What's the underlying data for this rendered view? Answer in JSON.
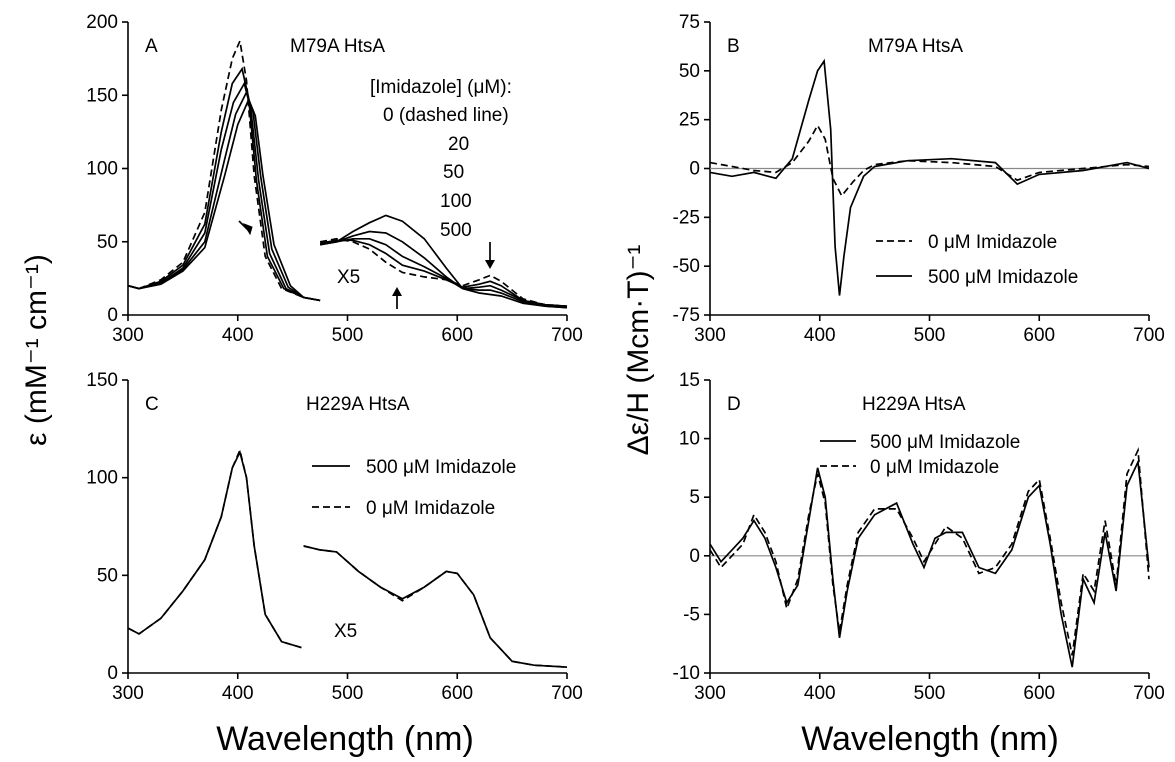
{
  "y_label_left": "ε  (mM⁻¹ cm⁻¹)",
  "y_label_right": "Δε/H (Mcm·T)⁻¹",
  "x_label_left": "Wavelength  (nm)",
  "x_label_right": "Wavelength  (nm)",
  "chart_data": [
    {
      "panel": "A",
      "type": "line",
      "title": "M79A HtsA",
      "xlim": [
        300,
        700
      ],
      "ylim": [
        0,
        200
      ],
      "xticks": [
        300,
        400,
        500,
        600,
        700
      ],
      "yticks": [
        0,
        50,
        100,
        150,
        200
      ],
      "legend_title": "[Imidazole] (μM):",
      "legend_items": [
        "0  (dashed line)",
        "20",
        "50",
        "100",
        "500"
      ],
      "annotations": [
        "X5"
      ],
      "series": [
        {
          "name": "0",
          "style": "dashed",
          "x": [
            300,
            310,
            330,
            350,
            370,
            385,
            395,
            402,
            408,
            415,
            425,
            440,
            460,
            475
          ],
          "y": [
            20,
            18,
            24,
            36,
            70,
            140,
            175,
            187,
            160,
            95,
            40,
            18,
            12,
            10
          ]
        },
        {
          "name": "20",
          "style": "solid",
          "x": [
            300,
            310,
            330,
            350,
            370,
            385,
            395,
            404,
            410,
            417,
            427,
            442,
            460,
            475
          ],
          "y": [
            20,
            18,
            23,
            34,
            62,
            125,
            158,
            168,
            148,
            92,
            40,
            18,
            12,
            10
          ]
        },
        {
          "name": "50",
          "style": "solid",
          "x": [
            300,
            310,
            330,
            350,
            370,
            385,
            396,
            406,
            412,
            419,
            429,
            444,
            460,
            475
          ],
          "y": [
            20,
            18,
            22,
            32,
            56,
            113,
            145,
            158,
            140,
            92,
            42,
            18,
            12,
            10
          ]
        },
        {
          "name": "100",
          "style": "solid",
          "x": [
            300,
            310,
            330,
            350,
            370,
            387,
            398,
            408,
            414,
            421,
            431,
            446,
            460,
            475
          ],
          "y": [
            20,
            18,
            22,
            31,
            50,
            103,
            137,
            152,
            138,
            94,
            45,
            19,
            12,
            10
          ]
        },
        {
          "name": "500",
          "style": "solid",
          "x": [
            300,
            310,
            330,
            350,
            370,
            388,
            400,
            410,
            416,
            423,
            433,
            448,
            460,
            475
          ],
          "y": [
            20,
            18,
            21,
            30,
            46,
            95,
            130,
            147,
            136,
            95,
            48,
            20,
            12,
            10
          ]
        },
        {
          "name": "0 (visible x5)",
          "style": "dashed",
          "x": [
            475,
            490,
            505,
            520,
            535,
            550,
            570,
            590,
            605,
            620,
            630,
            640,
            660,
            680,
            700
          ],
          "y": [
            50,
            52,
            50,
            45,
            36,
            29,
            26,
            24,
            20,
            24,
            27,
            23,
            11,
            7,
            6
          ]
        },
        {
          "name": "20 (visible x5)",
          "style": "solid",
          "x": [
            475,
            490,
            505,
            520,
            535,
            550,
            570,
            590,
            605,
            620,
            630,
            640,
            660,
            680,
            700
          ],
          "y": [
            49,
            51,
            51,
            48,
            42,
            34,
            30,
            24,
            19,
            21,
            23,
            20,
            10,
            7,
            6
          ]
        },
        {
          "name": "50 (visible x5)",
          "style": "solid",
          "x": [
            475,
            490,
            505,
            520,
            535,
            550,
            570,
            590,
            605,
            620,
            630,
            640,
            660,
            680,
            700
          ],
          "y": [
            48,
            50,
            52,
            52,
            48,
            40,
            33,
            25,
            18,
            19,
            20,
            17,
            10,
            7,
            6
          ]
        },
        {
          "name": "100 (visible x5)",
          "style": "solid",
          "x": [
            475,
            490,
            505,
            520,
            535,
            550,
            570,
            590,
            605,
            620,
            630,
            640,
            660,
            680,
            700
          ],
          "y": [
            48,
            50,
            54,
            57,
            56,
            50,
            39,
            26,
            18,
            17,
            17,
            15,
            9,
            6,
            5
          ]
        },
        {
          "name": "500 (visible x5)",
          "style": "solid",
          "x": [
            475,
            490,
            505,
            520,
            535,
            550,
            570,
            590,
            605,
            620,
            630,
            640,
            660,
            680,
            700
          ],
          "y": [
            48,
            50,
            57,
            63,
            68,
            64,
            52,
            32,
            18,
            15,
            14,
            13,
            8,
            6,
            5
          ]
        }
      ]
    },
    {
      "panel": "B",
      "type": "line",
      "title": "M79A HtsA",
      "xlim": [
        300,
        700
      ],
      "ylim": [
        -75,
        75
      ],
      "xticks": [
        300,
        400,
        500,
        600,
        700
      ],
      "yticks": [
        -75,
        -50,
        -25,
        0,
        25,
        50,
        75
      ],
      "legend_items": [
        "0  μM Imidazole",
        "500  μM Imidazole"
      ],
      "series": [
        {
          "name": "0 μM Imidazole",
          "style": "dashed",
          "x": [
            300,
            320,
            340,
            360,
            375,
            390,
            398,
            405,
            412,
            420,
            430,
            440,
            450,
            480,
            520,
            560,
            580,
            600,
            640,
            680,
            700
          ],
          "y": [
            3,
            1,
            -1,
            -2,
            3,
            14,
            22,
            15,
            -5,
            -14,
            -7,
            -1,
            2,
            4,
            3,
            1,
            -6,
            -2,
            0,
            2,
            1
          ]
        },
        {
          "name": "500 μM Imidazole",
          "style": "solid",
          "x": [
            300,
            320,
            340,
            360,
            375,
            390,
            398,
            404,
            410,
            414,
            418,
            422,
            428,
            440,
            450,
            480,
            520,
            560,
            580,
            600,
            640,
            680,
            700
          ],
          "y": [
            -2,
            -4,
            -2,
            -5,
            5,
            35,
            50,
            55,
            20,
            -40,
            -65,
            -45,
            -20,
            -4,
            1,
            4,
            5,
            3,
            -8,
            -3,
            -1,
            3,
            0
          ]
        }
      ]
    },
    {
      "panel": "C",
      "type": "line",
      "title": "H229A HtsA",
      "xlim": [
        300,
        700
      ],
      "ylim": [
        0,
        150
      ],
      "xticks": [
        300,
        400,
        500,
        600,
        700
      ],
      "yticks": [
        0,
        50,
        100,
        150
      ],
      "legend_items": [
        "500  μM Imidazole",
        "0  μM Imidazole"
      ],
      "annotations": [
        "X5"
      ],
      "series": [
        {
          "name": "500 μM Imidazole",
          "style": "solid",
          "x": [
            300,
            310,
            330,
            350,
            370,
            385,
            395,
            402,
            408,
            415,
            425,
            440,
            458
          ],
          "y": [
            23,
            20,
            28,
            42,
            58,
            80,
            105,
            113,
            100,
            65,
            30,
            16,
            13
          ]
        },
        {
          "name": "0 μM Imidazole",
          "style": "dashed",
          "x": [
            300,
            310,
            330,
            350,
            370,
            385,
            395,
            402,
            408,
            415,
            425,
            440,
            458
          ],
          "y": [
            23,
            20,
            28,
            42,
            58,
            80,
            105,
            114,
            100,
            65,
            30,
            16,
            13
          ]
        },
        {
          "name": "500 μM Imidazole (visible x5)",
          "style": "solid",
          "x": [
            460,
            475,
            490,
            510,
            530,
            550,
            570,
            590,
            600,
            615,
            630,
            650,
            670,
            700
          ],
          "y": [
            65,
            63,
            62,
            52,
            44,
            38,
            44,
            52,
            51,
            40,
            18,
            6,
            4,
            3
          ]
        },
        {
          "name": "0 μM Imidazole (visible x5)",
          "style": "dashed",
          "x": [
            460,
            475,
            490,
            510,
            530,
            550,
            570,
            590,
            600,
            615,
            630,
            650,
            670,
            700
          ],
          "y": [
            65,
            63,
            62,
            52,
            44,
            37,
            44,
            52,
            51,
            40,
            18,
            6,
            4,
            3
          ]
        }
      ]
    },
    {
      "panel": "D",
      "type": "line",
      "title": "H229A HtsA",
      "xlim": [
        300,
        700
      ],
      "ylim": [
        -10,
        15
      ],
      "xticks": [
        300,
        400,
        500,
        600,
        700
      ],
      "yticks": [
        -10,
        -5,
        0,
        5,
        10,
        15
      ],
      "legend_items": [
        "500  μM Imidazole",
        "0  μM Imidazole"
      ],
      "series": [
        {
          "name": "500 μM Imidazole",
          "style": "solid",
          "x": [
            300,
            310,
            320,
            330,
            340,
            350,
            360,
            370,
            380,
            390,
            398,
            405,
            412,
            418,
            425,
            435,
            450,
            470,
            485,
            495,
            505,
            515,
            530,
            545,
            560,
            575,
            590,
            600,
            610,
            620,
            630,
            640,
            650,
            660,
            670,
            680,
            690,
            700
          ],
          "y": [
            1,
            -0.5,
            0.5,
            1.5,
            3,
            1.5,
            -1,
            -4,
            -2.5,
            3,
            7.5,
            5,
            -2,
            -7,
            -3,
            1.5,
            3.5,
            4.5,
            1,
            -1,
            1.5,
            2,
            2,
            -1,
            -1.5,
            0.5,
            5,
            6,
            1,
            -5,
            -9.5,
            -2,
            -4,
            2,
            -3,
            6,
            8,
            -1
          ]
        },
        {
          "name": "0 μM Imidazole",
          "style": "dashed",
          "x": [
            300,
            310,
            320,
            330,
            340,
            350,
            360,
            370,
            380,
            390,
            398,
            405,
            412,
            418,
            425,
            435,
            450,
            470,
            485,
            495,
            505,
            515,
            530,
            545,
            560,
            575,
            590,
            600,
            610,
            620,
            630,
            640,
            650,
            660,
            670,
            680,
            690,
            700
          ],
          "y": [
            0.5,
            -1,
            0,
            1,
            3.5,
            2,
            -0.5,
            -4.5,
            -2,
            3.5,
            7,
            4.5,
            -2.5,
            -6.5,
            -2.5,
            2,
            4,
            4,
            1.5,
            -0.5,
            1,
            2.5,
            1.5,
            -1.5,
            -1,
            1,
            5.5,
            6.5,
            1.5,
            -4,
            -8.5,
            -1.5,
            -3,
            3,
            -2.5,
            7,
            9,
            -2
          ]
        }
      ]
    }
  ]
}
